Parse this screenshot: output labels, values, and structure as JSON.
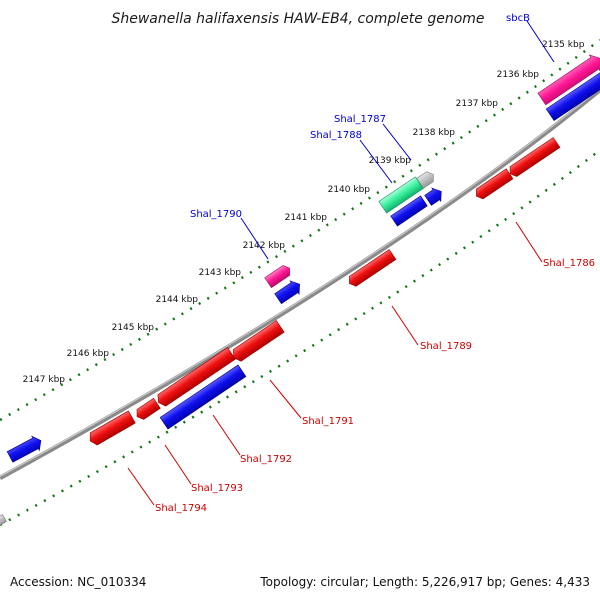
{
  "title": "Shewanella halifaxensis HAW-EB4, complete genome",
  "footer": {
    "accession": "Accession: NC_010334",
    "summary": "Topology: circular; Length: 5,226,917 bp; Genes: 4,433"
  },
  "colors": {
    "forward_gene": "#0000ff",
    "reverse_gene": "#ff0000",
    "rna_gene": "#ff1493",
    "other_gene": "#33ee99",
    "pseudo_gene": "#bbbbbb",
    "backbone": "#777777",
    "ticks": "#117711"
  },
  "kbp_labels": [
    "2135 kbp",
    "2136 kbp",
    "2137 kbp",
    "2138 kbp",
    "2139 kbp",
    "2140 kbp",
    "2141 kbp",
    "2142 kbp",
    "2143 kbp",
    "2144 kbp",
    "2145 kbp",
    "2146 kbp",
    "2147 kbp"
  ],
  "gene_labels": {
    "forward": [
      "sbcB",
      "Shal_1787",
      "Shal_1788",
      "Shal_1790"
    ],
    "reverse": [
      "Shal_1786",
      "Shal_1789",
      "Shal_1791",
      "Shal_1792",
      "Shal_1793",
      "Shal_1794"
    ]
  }
}
